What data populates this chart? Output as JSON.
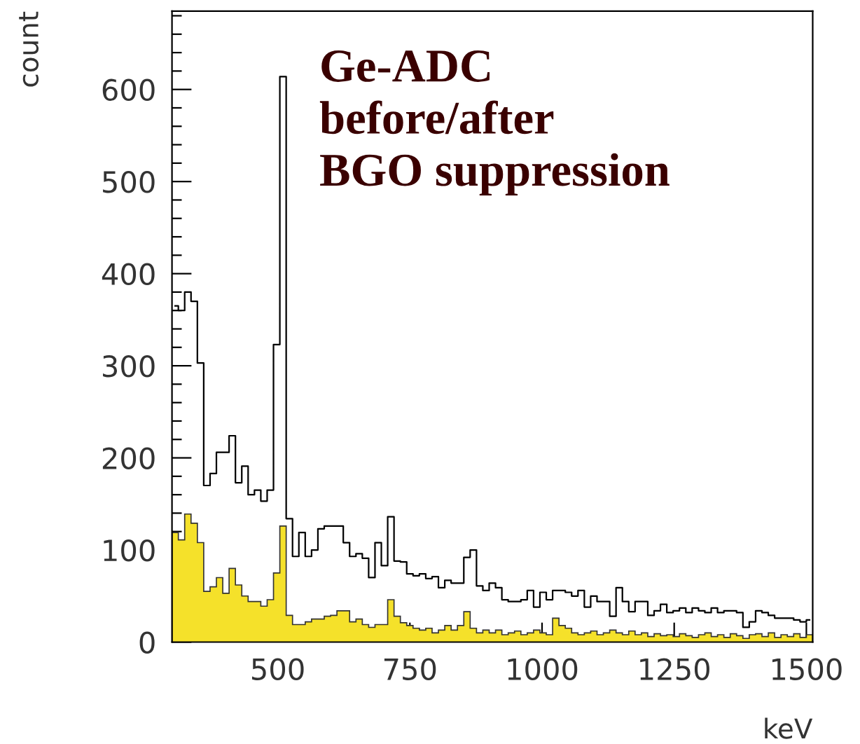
{
  "chart_data": {
    "type": "histogram",
    "annotations": [
      "Ge-ADC\nbefore/after\nBGO suppression"
    ],
    "xlabel": "keV",
    "ylabel": "count",
    "bins": [
      300,
      312,
      324,
      336,
      348,
      360,
      372,
      384,
      396,
      408,
      420,
      432,
      444,
      456,
      468,
      480,
      492,
      504,
      516,
      528,
      540,
      552,
      564,
      576,
      588,
      600,
      612,
      624,
      636,
      648,
      660,
      672,
      684,
      696,
      708,
      720,
      732,
      744,
      756,
      768,
      780,
      792,
      804,
      816,
      828,
      840,
      852,
      864,
      876,
      888,
      900,
      912,
      924,
      936,
      948,
      960,
      972,
      984,
      996,
      1008,
      1020,
      1032,
      1044,
      1056,
      1068,
      1080,
      1092,
      1104,
      1116,
      1128,
      1140,
      1152,
      1164,
      1176,
      1188,
      1200,
      1212,
      1224,
      1236,
      1248,
      1260,
      1272,
      1284,
      1296,
      1308,
      1320,
      1332,
      1344,
      1356,
      1368,
      1380,
      1392,
      1404,
      1416,
      1428,
      1440,
      1452,
      1464,
      1476,
      1488,
      1500,
      1512
    ],
    "series": [
      {
        "type": "step",
        "color": "#000000",
        "x": [
          306,
          318,
          330,
          342,
          354,
          366,
          378,
          390,
          402,
          414,
          426,
          438,
          450,
          462,
          474,
          486,
          498,
          510,
          522,
          534,
          546,
          558,
          570,
          582,
          594,
          606,
          618,
          630,
          642,
          654,
          666,
          678,
          690,
          702,
          714,
          726,
          738,
          750,
          762,
          774,
          786,
          798,
          810,
          822,
          834,
          846,
          858,
          870,
          882,
          894,
          906,
          918,
          930,
          942,
          954,
          966,
          978,
          990,
          1002,
          1014,
          1026,
          1038,
          1050,
          1062,
          1074,
          1086,
          1098,
          1110,
          1122,
          1134,
          1146,
          1158,
          1170,
          1182,
          1194,
          1206,
          1218,
          1230,
          1242,
          1254,
          1266,
          1278,
          1290,
          1302,
          1314,
          1326,
          1338,
          1350,
          1362,
          1374,
          1386,
          1398,
          1410,
          1422,
          1434,
          1446,
          1458,
          1470,
          1482,
          1494,
          1506
        ],
        "values": [
          365,
          360,
          380,
          370,
          303,
          170,
          183,
          206,
          206,
          224,
          173,
          191,
          160,
          165,
          153,
          165,
          323,
          614,
          134,
          93,
          119,
          93,
          100,
          123,
          126,
          126,
          126,
          108,
          93,
          96,
          91,
          70,
          108,
          83,
          136,
          88,
          87,
          74,
          72,
          74,
          69,
          71,
          59,
          67,
          64,
          64,
          92,
          100,
          61,
          56,
          64,
          59,
          46,
          44,
          44,
          46,
          56,
          38,
          54,
          46,
          56,
          56,
          54,
          50,
          56,
          38,
          50,
          44,
          44,
          28,
          59,
          44,
          33,
          44,
          44,
          29,
          34,
          41,
          32,
          34,
          37,
          32,
          37,
          34,
          32,
          37,
          32,
          34,
          34,
          32,
          16,
          22,
          34,
          32,
          29,
          26,
          26,
          26,
          24,
          22,
          24
        ]
      },
      {
        "color": "#f5e12a",
        "values": [
          119,
          111,
          139,
          129,
          108,
          55,
          60,
          70,
          53,
          80,
          62,
          50,
          44,
          44,
          39,
          46,
          75,
          126,
          29,
          19,
          19,
          22,
          25,
          25,
          28,
          29,
          34,
          34,
          22,
          25,
          19,
          16,
          19,
          19,
          46,
          28,
          21,
          18,
          15,
          13,
          15,
          10,
          13,
          18,
          13,
          18,
          33,
          15,
          10,
          13,
          10,
          13,
          8,
          10,
          12,
          8,
          10,
          13,
          10,
          8,
          26,
          18,
          15,
          10,
          8,
          10,
          12,
          8,
          10,
          13,
          10,
          8,
          12,
          8,
          10,
          6,
          9,
          7,
          8,
          6,
          9,
          7,
          5,
          8,
          10,
          6,
          8,
          5,
          9,
          7,
          4,
          8,
          9,
          6,
          10,
          5,
          8,
          6,
          9,
          5,
          8
        ]
      }
    ],
    "xlim": [
      300,
      1512
    ],
    "ylim": [
      0,
      685
    ],
    "xticks": [
      500,
      750,
      1000,
      1250,
      1500
    ],
    "yticks": [
      0,
      {
        "value": 20,
        "label": null
      },
      {
        "value": 40,
        "label": null
      },
      {
        "value": 60,
        "label": null
      },
      {
        "value": 80,
        "label": null
      },
      100,
      {
        "value": 120,
        "label": null
      },
      {
        "value": 140,
        "label": null
      },
      {
        "value": 160,
        "label": null
      },
      {
        "value": 180,
        "label": null
      },
      200,
      {
        "value": 220,
        "label": null
      },
      {
        "value": 240,
        "label": null
      },
      {
        "value": 260,
        "label": null
      },
      {
        "value": 280,
        "label": null
      },
      300,
      {
        "value": 320,
        "label": null
      },
      {
        "value": 340,
        "label": null
      },
      {
        "value": 360,
        "label": null
      },
      {
        "value": 380,
        "label": null
      },
      400,
      {
        "value": 420,
        "label": null
      },
      {
        "value": 440,
        "label": null
      },
      {
        "value": 460,
        "label": null
      },
      {
        "value": 480,
        "label": null
      },
      500,
      {
        "value": 520,
        "label": null
      },
      {
        "value": 540,
        "label": null
      },
      {
        "value": 560,
        "label": null
      },
      {
        "value": 580,
        "label": null
      },
      600,
      {
        "value": 620,
        "label": null
      },
      {
        "value": 640,
        "label": null
      },
      {
        "value": 660,
        "label": null
      },
      {
        "value": 680,
        "label": null
      }
    ],
    "grid": false,
    "legend": false
  }
}
